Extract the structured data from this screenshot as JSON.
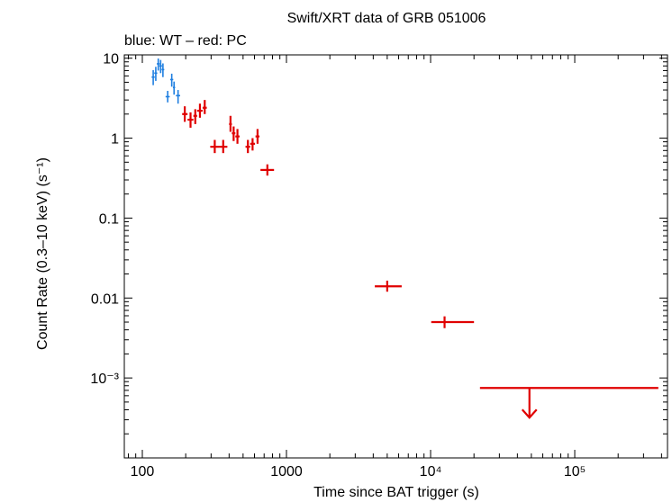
{
  "chart_data": {
    "type": "scatter",
    "title": "Swift/XRT data of GRB 051006",
    "subtitle": "blue: WT – red: PC",
    "xlabel": "Time since BAT trigger (s)",
    "ylabel": "Count Rate (0.3–10 keV) (s⁻¹)",
    "x_scale": "log",
    "y_scale": "log",
    "xlim": [
      75,
      440000
    ],
    "ylim": [
      0.0001,
      11
    ],
    "x_ticks": [
      {
        "value": 100,
        "label": "100"
      },
      {
        "value": 1000,
        "label": "1000"
      },
      {
        "value": 10000,
        "label": "10⁴"
      },
      {
        "value": 100000,
        "label": "10⁵"
      }
    ],
    "y_ticks": [
      {
        "value": 10,
        "label": "10"
      },
      {
        "value": 1,
        "label": "1"
      },
      {
        "value": 0.1,
        "label": "0.1"
      },
      {
        "value": 0.01,
        "label": "0.01"
      },
      {
        "value": 0.001,
        "label": "10⁻³"
      }
    ],
    "colors": {
      "wt": "#1f7fe0",
      "pc": "#e00000",
      "axis": "#000000"
    },
    "series": [
      {
        "mode": "WT",
        "color": "#1f7fe0",
        "points": [
          {
            "x": 119,
            "xlo": 116,
            "xhi": 122,
            "y": 5.8,
            "ylo": 4.6,
            "yhi": 7.1
          },
          {
            "x": 124,
            "xlo": 121,
            "xhi": 127,
            "y": 6.5,
            "ylo": 5.2,
            "yhi": 7.8
          },
          {
            "x": 129,
            "xlo": 126,
            "xhi": 132,
            "y": 8.5,
            "ylo": 7.0,
            "yhi": 9.9
          },
          {
            "x": 134,
            "xlo": 131,
            "xhi": 137,
            "y": 8.0,
            "ylo": 6.5,
            "yhi": 9.5
          },
          {
            "x": 139,
            "xlo": 136,
            "xhi": 142,
            "y": 7.2,
            "ylo": 5.8,
            "yhi": 8.6
          },
          {
            "x": 150,
            "xlo": 145,
            "xhi": 155,
            "y": 3.3,
            "ylo": 2.8,
            "yhi": 3.9
          },
          {
            "x": 160,
            "xlo": 156,
            "xhi": 164,
            "y": 5.4,
            "ylo": 4.4,
            "yhi": 6.4
          },
          {
            "x": 166,
            "xlo": 163,
            "xhi": 169,
            "y": 4.3,
            "ylo": 3.5,
            "yhi": 5.1
          },
          {
            "x": 177,
            "xlo": 171,
            "xhi": 183,
            "y": 3.4,
            "ylo": 2.7,
            "yhi": 4.0
          }
        ]
      },
      {
        "mode": "PC",
        "color": "#e00000",
        "points": [
          {
            "x": 197,
            "xlo": 189,
            "xhi": 206,
            "y": 2.0,
            "ylo": 1.6,
            "yhi": 2.5
          },
          {
            "x": 216,
            "xlo": 206,
            "xhi": 226,
            "y": 1.7,
            "ylo": 1.35,
            "yhi": 2.1
          },
          {
            "x": 233,
            "xlo": 226,
            "xhi": 240,
            "y": 1.9,
            "ylo": 1.5,
            "yhi": 2.3
          },
          {
            "x": 251,
            "xlo": 240,
            "xhi": 262,
            "y": 2.2,
            "ylo": 1.8,
            "yhi": 2.7
          },
          {
            "x": 271,
            "xlo": 262,
            "xhi": 280,
            "y": 2.4,
            "ylo": 2.0,
            "yhi": 3.0
          },
          {
            "x": 318,
            "xlo": 296,
            "xhi": 342,
            "y": 0.78,
            "ylo": 0.65,
            "yhi": 0.95
          },
          {
            "x": 364,
            "xlo": 342,
            "xhi": 389,
            "y": 0.78,
            "ylo": 0.65,
            "yhi": 0.95
          },
          {
            "x": 409,
            "xlo": 400,
            "xhi": 418,
            "y": 1.5,
            "ylo": 1.2,
            "yhi": 1.9
          },
          {
            "x": 430,
            "xlo": 418,
            "xhi": 442,
            "y": 1.15,
            "ylo": 0.92,
            "yhi": 1.4
          },
          {
            "x": 457,
            "xlo": 442,
            "xhi": 473,
            "y": 1.05,
            "ylo": 0.85,
            "yhi": 1.3
          },
          {
            "x": 540,
            "xlo": 520,
            "xhi": 560,
            "y": 0.78,
            "ylo": 0.65,
            "yhi": 0.95
          },
          {
            "x": 582,
            "xlo": 560,
            "xhi": 605,
            "y": 0.85,
            "ylo": 0.7,
            "yhi": 1.0
          },
          {
            "x": 630,
            "xlo": 610,
            "xhi": 650,
            "y": 1.05,
            "ylo": 0.85,
            "yhi": 1.3
          },
          {
            "x": 737,
            "xlo": 660,
            "xhi": 820,
            "y": 0.4,
            "ylo": 0.34,
            "yhi": 0.47
          },
          {
            "x": 5000,
            "xlo": 4100,
            "xhi": 6300,
            "y": 0.014,
            "ylo": 0.012,
            "yhi": 0.0165
          },
          {
            "x": 12500,
            "xlo": 10100,
            "xhi": 20000,
            "y": 0.005,
            "ylo": 0.0042,
            "yhi": 0.0059
          }
        ]
      }
    ],
    "upper_limits": [
      {
        "mode": "PC",
        "color": "#e00000",
        "x": 48500,
        "xlo": 22000,
        "xhi": 380000,
        "y": 0.00075
      }
    ]
  }
}
